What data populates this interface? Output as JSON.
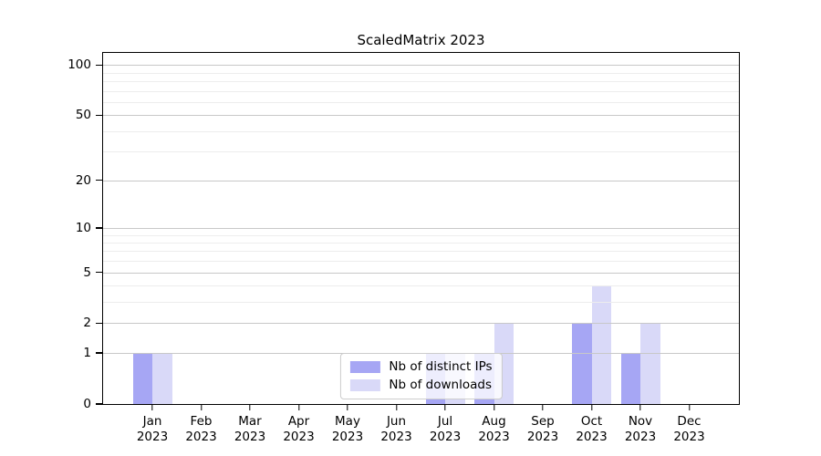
{
  "title": "ScaledMatrix 2023",
  "chart_data": {
    "type": "bar",
    "title": "ScaledMatrix 2023",
    "categories": [
      {
        "line1": "Jan",
        "line2": "2023"
      },
      {
        "line1": "Feb",
        "line2": "2023"
      },
      {
        "line1": "Mar",
        "line2": "2023"
      },
      {
        "line1": "Apr",
        "line2": "2023"
      },
      {
        "line1": "May",
        "line2": "2023"
      },
      {
        "line1": "Jun",
        "line2": "2023"
      },
      {
        "line1": "Jul",
        "line2": "2023"
      },
      {
        "line1": "Aug",
        "line2": "2023"
      },
      {
        "line1": "Sep",
        "line2": "2023"
      },
      {
        "line1": "Oct",
        "line2": "2023"
      },
      {
        "line1": "Nov",
        "line2": "2023"
      },
      {
        "line1": "Dec",
        "line2": "2023"
      }
    ],
    "series": [
      {
        "name": "Nb of distinct IPs",
        "color": "#a6a6f4",
        "values": [
          1,
          0,
          0,
          0,
          0,
          0,
          1,
          1,
          0,
          2,
          1,
          0
        ]
      },
      {
        "name": "Nb of downloads",
        "color": "#d9d9f8",
        "values": [
          1,
          0,
          0,
          0,
          0,
          0,
          1,
          2,
          0,
          4,
          2,
          0
        ]
      }
    ],
    "yscale": "log1p",
    "ylim": [
      0,
      118
    ],
    "yticks": [
      0,
      1,
      2,
      5,
      10,
      20,
      50,
      100
    ],
    "yticks_minor": [
      3,
      4,
      6,
      7,
      8,
      9,
      30,
      40,
      60,
      70,
      80,
      90
    ],
    "xlabel": "",
    "ylabel": "",
    "grid": true,
    "grid_major_color": "#c8c8c8",
    "grid_minor_color": "#ededed",
    "legend_position": "lower center"
  }
}
